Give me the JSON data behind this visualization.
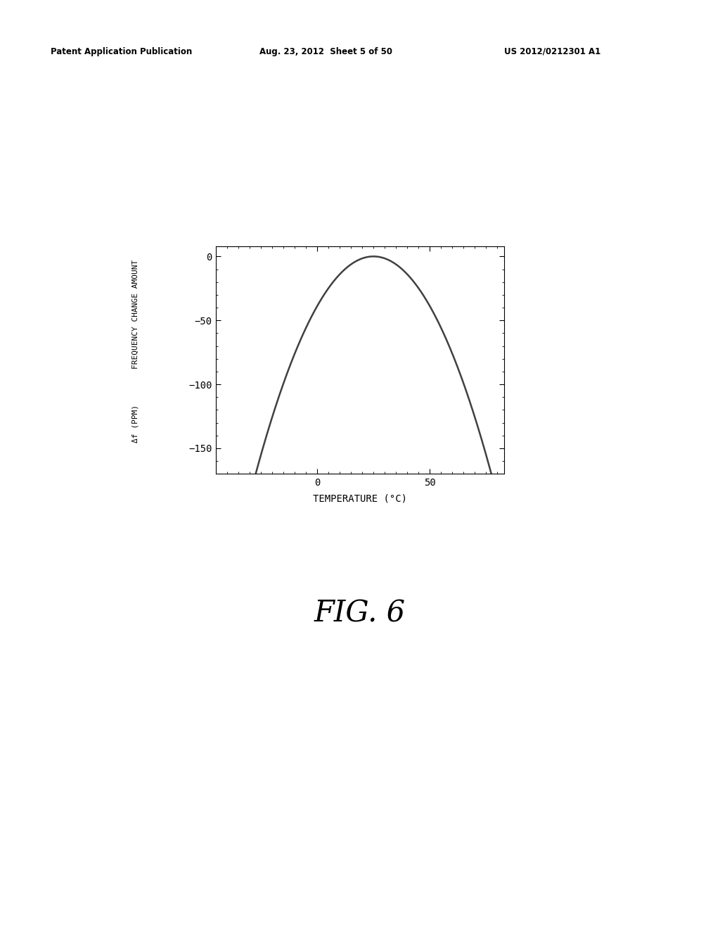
{
  "header_left": "Patent Application Publication",
  "header_mid": "Aug. 23, 2012  Sheet 5 of 50",
  "header_right": "US 2012/0212301 A1",
  "figure_label": "FIG. 6",
  "xlabel": "TEMPERATURE (°C)",
  "ylabel_line1": "FREQUENCY CHANGE AMOUNT",
  "ylabel_line2": "Δf (PPM)",
  "xlim": [
    -45,
    83
  ],
  "ylim": [
    -170,
    8
  ],
  "xticks": [
    0,
    50
  ],
  "yticks": [
    0,
    -50,
    -100,
    -150
  ],
  "peak_temp": 25,
  "curve_color": "#404040",
  "curve_linewidth": 1.8,
  "background_color": "#ffffff",
  "plot_bg_color": "#ffffff",
  "minor_xtick_interval": 5,
  "minor_ytick_interval": 10,
  "a_coeff": -0.062,
  "T_start": -45,
  "T_end": 83
}
